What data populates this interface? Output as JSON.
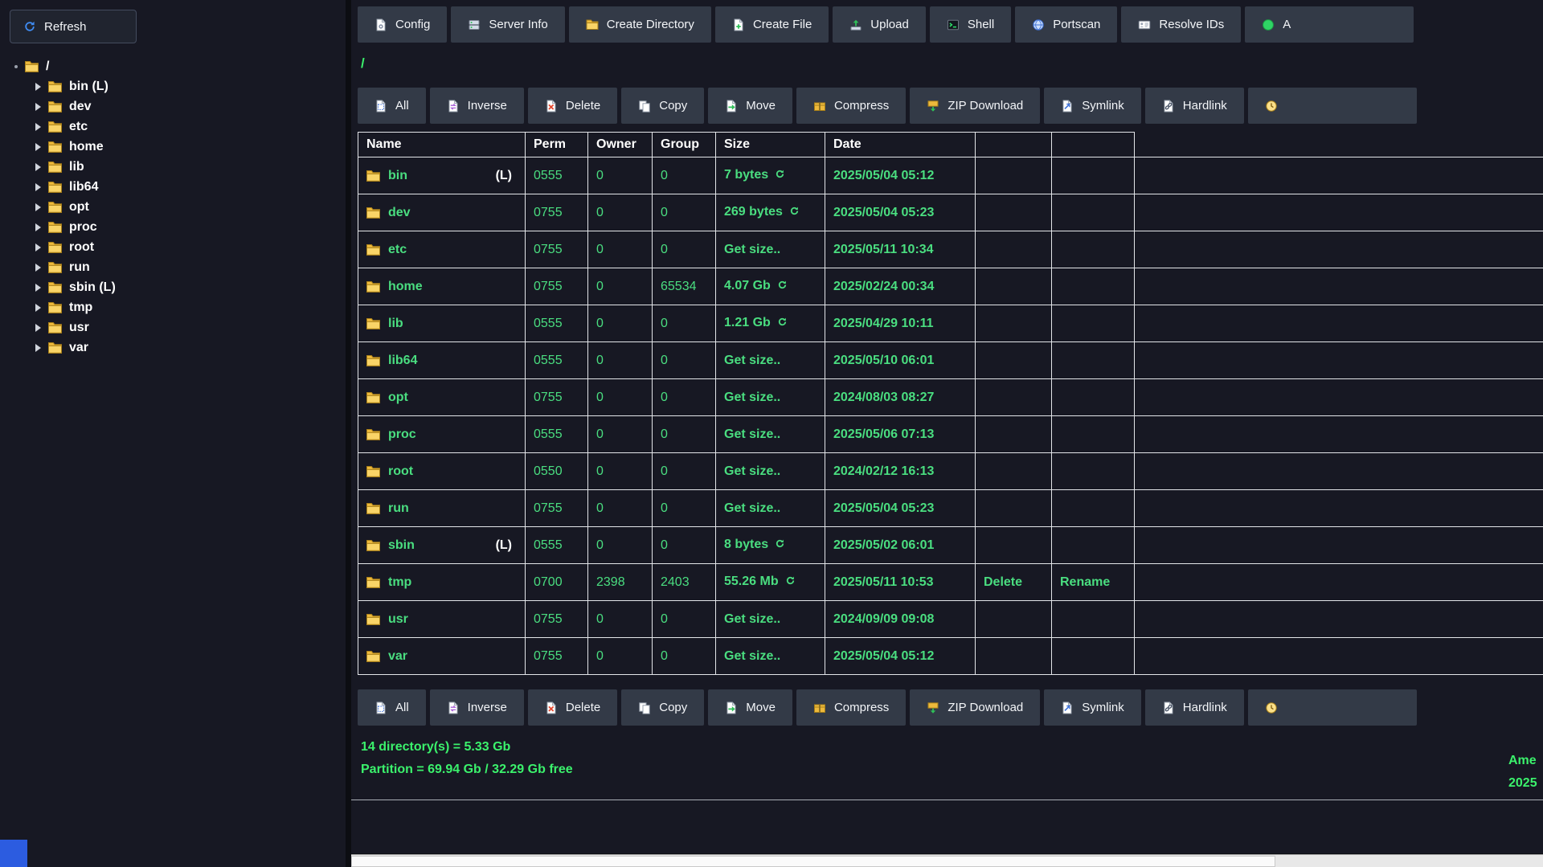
{
  "sidebar": {
    "refresh_button": {
      "label": "Refresh",
      "icon": "refresh-icon"
    },
    "tree": {
      "root": {
        "label": "/",
        "icon": "folder-icon"
      },
      "items": [
        {
          "label": "bin (L)"
        },
        {
          "label": "dev"
        },
        {
          "label": "etc"
        },
        {
          "label": "home"
        },
        {
          "label": "lib"
        },
        {
          "label": "lib64"
        },
        {
          "label": "opt"
        },
        {
          "label": "proc"
        },
        {
          "label": "root"
        },
        {
          "label": "run"
        },
        {
          "label": "sbin (L)"
        },
        {
          "label": "tmp"
        },
        {
          "label": "usr"
        },
        {
          "label": "var"
        }
      ]
    }
  },
  "top_toolbar": {
    "buttons": [
      {
        "label": "Config",
        "icon": "config-icon"
      },
      {
        "label": "Server Info",
        "icon": "server-info-icon"
      },
      {
        "label": "Create Directory",
        "icon": "create-directory-icon"
      },
      {
        "label": "Create File",
        "icon": "create-file-icon"
      },
      {
        "label": "Upload",
        "icon": "upload-icon"
      },
      {
        "label": "Shell",
        "icon": "shell-icon"
      },
      {
        "label": "Portscan",
        "icon": "portscan-icon"
      },
      {
        "label": "Resolve IDs",
        "icon": "resolve-ids-icon"
      },
      {
        "label": "A",
        "icon": "status-dot-icon",
        "partial": true
      }
    ]
  },
  "path_bar": {
    "path": "/"
  },
  "selection_toolbar": {
    "buttons": [
      {
        "label": "All",
        "icon": "select-all-icon"
      },
      {
        "label": "Inverse",
        "icon": "inverse-icon"
      },
      {
        "label": "Delete",
        "icon": "delete-icon"
      },
      {
        "label": "Copy",
        "icon": "copy-icon"
      },
      {
        "label": "Move",
        "icon": "move-icon"
      },
      {
        "label": "Compress",
        "icon": "compress-icon"
      },
      {
        "label": "ZIP Download",
        "icon": "zip-download-icon"
      },
      {
        "label": "Symlink",
        "icon": "symlink-icon"
      },
      {
        "label": "Hardlink",
        "icon": "hardlink-icon"
      },
      {
        "label": "",
        "icon": "clock-icon",
        "partial": true
      }
    ]
  },
  "table": {
    "headers": [
      "Name",
      "Perm",
      "Owner",
      "Group",
      "Size",
      "Date"
    ],
    "rows": [
      {
        "name": "bin",
        "link_marker": "(L)",
        "perm": "0555",
        "owner": "0",
        "group": "0",
        "size": "7 bytes",
        "has_refresh": true,
        "date": "2025/05/04 05:12"
      },
      {
        "name": "dev",
        "perm": "0755",
        "owner": "0",
        "group": "0",
        "size": "269 bytes",
        "has_refresh": true,
        "date": "2025/05/04 05:23"
      },
      {
        "name": "etc",
        "perm": "0755",
        "owner": "0",
        "group": "0",
        "size": "Get size..",
        "has_refresh": false,
        "date": "2025/05/11 10:34"
      },
      {
        "name": "home",
        "perm": "0755",
        "owner": "0",
        "group": "65534",
        "size": "4.07 Gb",
        "has_refresh": true,
        "date": "2025/02/24 00:34"
      },
      {
        "name": "lib",
        "perm": "0555",
        "owner": "0",
        "group": "0",
        "size": "1.21 Gb",
        "has_refresh": true,
        "date": "2025/04/29 10:11"
      },
      {
        "name": "lib64",
        "perm": "0555",
        "owner": "0",
        "group": "0",
        "size": "Get size..",
        "has_refresh": false,
        "date": "2025/05/10 06:01"
      },
      {
        "name": "opt",
        "perm": "0755",
        "owner": "0",
        "group": "0",
        "size": "Get size..",
        "has_refresh": false,
        "date": "2024/08/03 08:27"
      },
      {
        "name": "proc",
        "perm": "0555",
        "owner": "0",
        "group": "0",
        "size": "Get size..",
        "has_refresh": false,
        "date": "2025/05/06 07:13"
      },
      {
        "name": "root",
        "perm": "0550",
        "owner": "0",
        "group": "0",
        "size": "Get size..",
        "has_refresh": false,
        "date": "2024/02/12 16:13"
      },
      {
        "name": "run",
        "perm": "0755",
        "owner": "0",
        "group": "0",
        "size": "Get size..",
        "has_refresh": false,
        "date": "2025/05/04 05:23"
      },
      {
        "name": "sbin",
        "link_marker": "(L)",
        "perm": "0555",
        "owner": "0",
        "group": "0",
        "size": "8 bytes",
        "has_refresh": true,
        "date": "2025/05/02 06:01"
      },
      {
        "name": "tmp",
        "perm": "0700",
        "owner": "2398",
        "group": "2403",
        "size": "55.26 Mb",
        "has_refresh": true,
        "date": "2025/05/11 10:53",
        "actions": [
          "Delete",
          "Rename"
        ]
      },
      {
        "name": "usr",
        "perm": "0755",
        "owner": "0",
        "group": "0",
        "size": "Get size..",
        "has_refresh": false,
        "date": "2024/09/09 09:08"
      },
      {
        "name": "var",
        "perm": "0755",
        "owner": "0",
        "group": "0",
        "size": "Get size..",
        "has_refresh": false,
        "date": "2025/05/04 05:12"
      }
    ]
  },
  "status": {
    "left_line1": "14 directory(s) = 5.33 Gb",
    "left_line2": "Partition = 69.94 Gb / 32.29 Gb free",
    "right_line1": "Ame",
    "right_line2": "2025"
  },
  "colors": {
    "accent_green": "#4ade80",
    "status_green": "#3bf26c",
    "folder_yellow": "#edb93c",
    "button_bg": "#333a47",
    "panel_bg": "#171823",
    "table_border": "#e3e5e9",
    "corner_blue": "#2c5ce0"
  }
}
